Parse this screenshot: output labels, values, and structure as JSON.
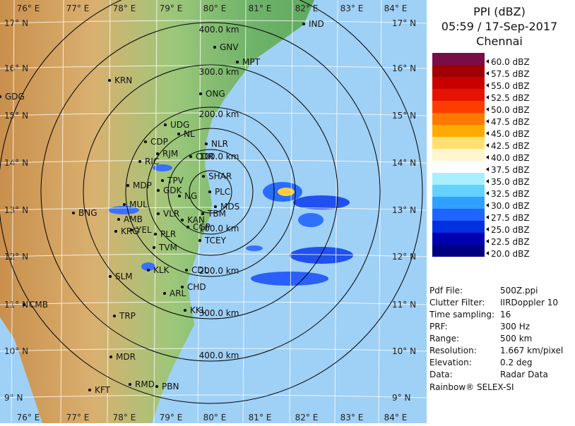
{
  "header": {
    "title": "PPI (dBZ)",
    "time": "05:59 / 17-Sep-2017",
    "station": "Chennai"
  },
  "legend": [
    {
      "label": "60.0 dBZ",
      "color": "#7a0c48"
    },
    {
      "label": "57.5 dBZ",
      "color": "#a00000"
    },
    {
      "label": "55.0 dBZ",
      "color": "#c80000"
    },
    {
      "label": "52.5 dBZ",
      "color": "#e41400"
    },
    {
      "label": "50.0 dBZ",
      "color": "#ff3c00"
    },
    {
      "label": "47.5 dBZ",
      "color": "#ff7800"
    },
    {
      "label": "45.0 dBZ",
      "color": "#ffaa00"
    },
    {
      "label": "42.5 dBZ",
      "color": "#ffe070"
    },
    {
      "label": "40.0 dBZ",
      "color": "#fff6d0"
    },
    {
      "label": "37.5 dBZ",
      "color": "#ffffff"
    },
    {
      "label": "35.0 dBZ",
      "color": "#a8f0ff"
    },
    {
      "label": "32.5 dBZ",
      "color": "#64d2ff"
    },
    {
      "label": "30.0 dBZ",
      "color": "#30a0ff"
    },
    {
      "label": "27.5 dBZ",
      "color": "#2064ff"
    },
    {
      "label": "25.0 dBZ",
      "color": "#0030e0"
    },
    {
      "label": "22.5 dBZ",
      "color": "#0000b0"
    },
    {
      "label": "20.0 dBZ",
      "color": "#000080"
    }
  ],
  "info": [
    {
      "label": "Pdf File:",
      "value": "500Z.ppi"
    },
    {
      "label": "Clutter Filter:",
      "value": "IIRDoppler 10"
    },
    {
      "label": "Time sampling:",
      "value": "16"
    },
    {
      "label": "PRF:",
      "value": "300 Hz"
    },
    {
      "label": "Range:",
      "value": "500 km"
    },
    {
      "label": "Resolution:",
      "value": "1.667 km/pixel"
    },
    {
      "label": "Elevation:",
      "value": "0.2 deg"
    },
    {
      "label": "Data:",
      "value": "Radar Data"
    }
  ],
  "footer": "Rainbow® SELEX-SI",
  "map": {
    "longitudes": [
      "76° E",
      "77° E",
      "78° E",
      "79° E",
      "80° E",
      "81° E",
      "82° E",
      "83° E",
      "84° E"
    ],
    "latitudes": [
      "17° N",
      "16° N",
      "15° N",
      "14° N",
      "13° N",
      "12° N",
      "11° N",
      "10° N",
      "9° N"
    ],
    "range_rings": [
      "100.0 km",
      "200.0 km",
      "300.0 km",
      "400.0 km"
    ],
    "cities": [
      "IND",
      "GNV",
      "MPT",
      "KRN",
      "GDG",
      "ONG",
      "UDG",
      "NL",
      "CDP",
      "RJM",
      "NLR",
      "CDR",
      "RIC",
      "SHAR",
      "TPV",
      "MDP",
      "GDK",
      "PLC",
      "NG",
      "MUL",
      "MDS",
      "BNG",
      "AMB",
      "VLR",
      "TBM",
      "KRG",
      "YEL",
      "KAN",
      "CGP",
      "PLR",
      "TVM",
      "TCEY",
      "SLM",
      "KLK",
      "CDL",
      "ARL",
      "CHD",
      "CMB",
      "TRP",
      "KKL",
      "MDR",
      "KFT",
      "RMD",
      "PBN"
    ]
  }
}
